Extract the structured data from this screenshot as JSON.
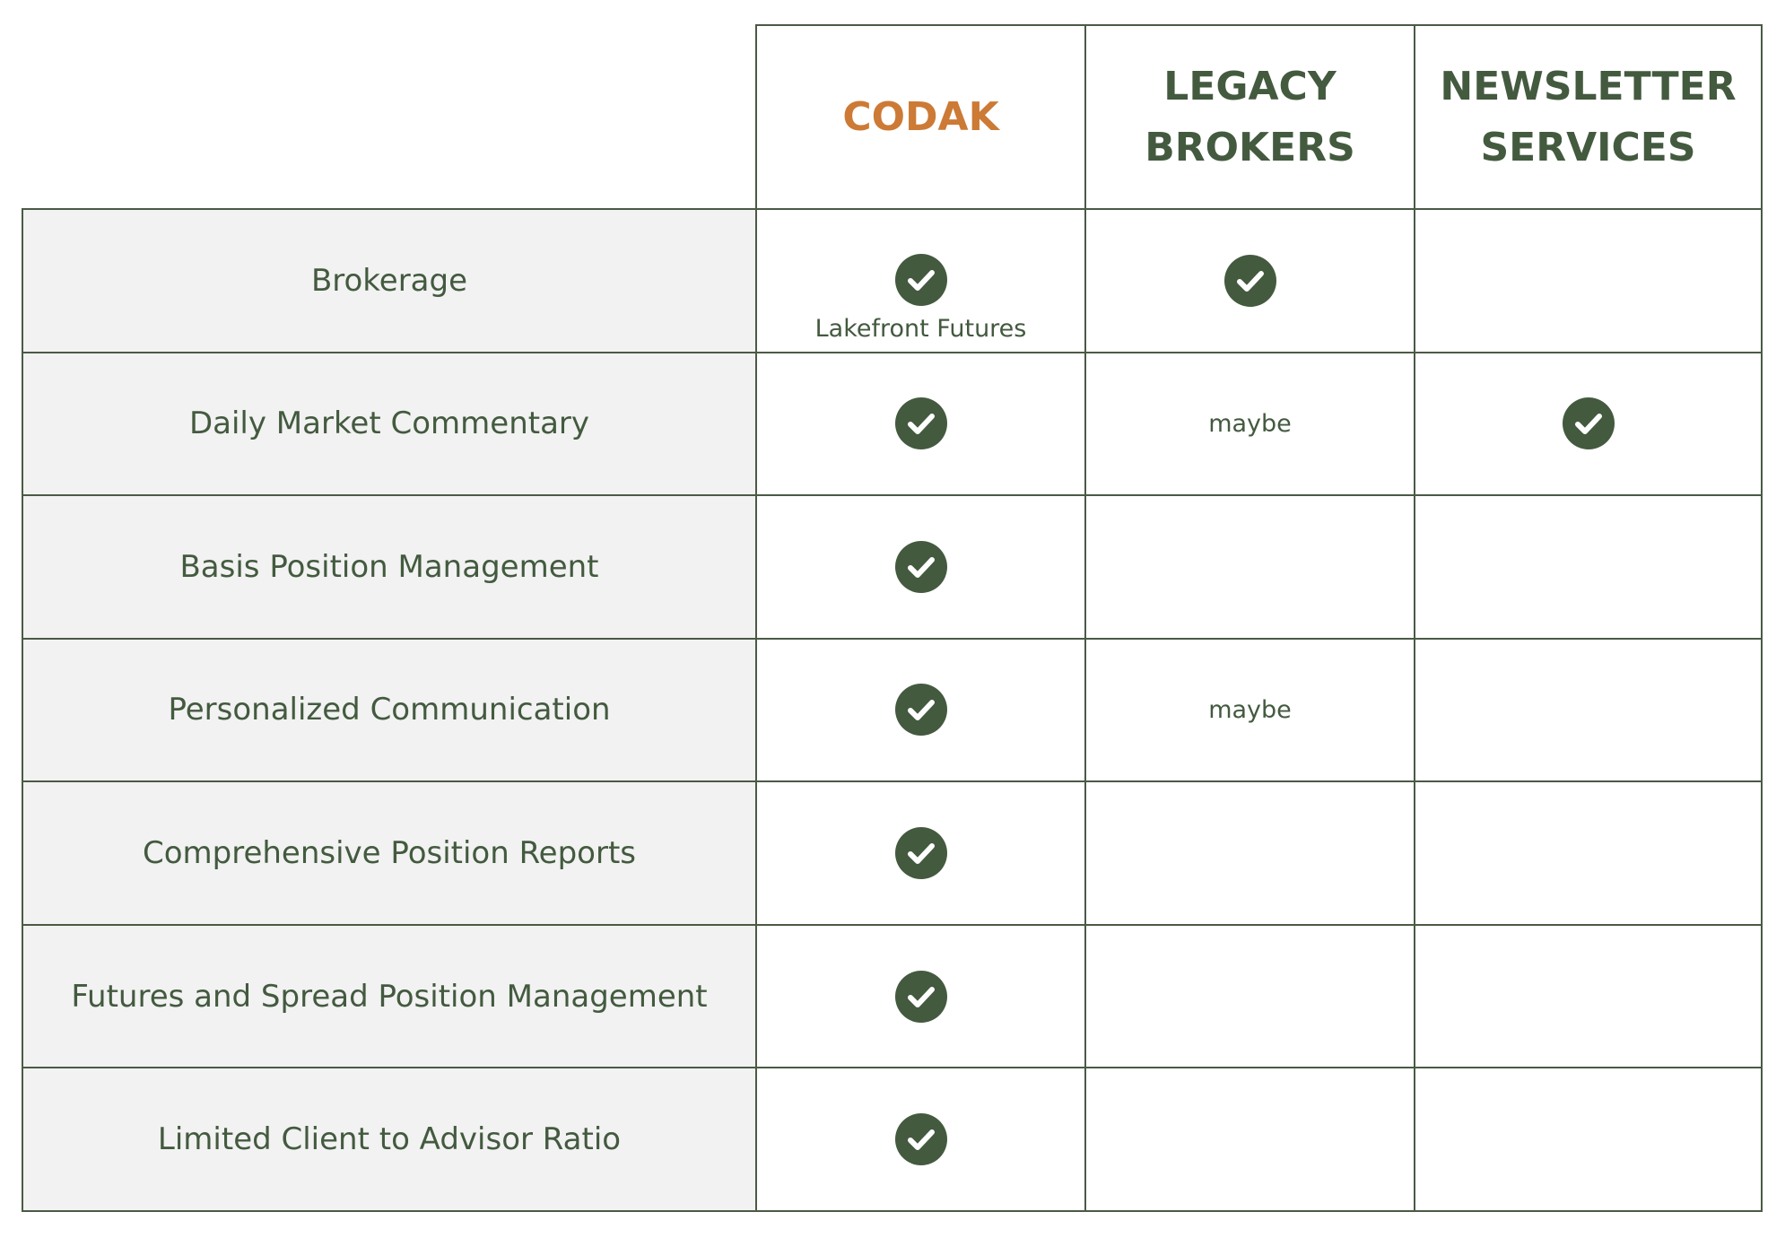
{
  "table": {
    "columns": [
      {
        "label": "CODAK",
        "color": "#cc7a35"
      },
      {
        "label": "LEGACY BROKERS",
        "color": "#435a3f"
      },
      {
        "label": "NEWSLETTER SERVICES",
        "color": "#435a3f"
      }
    ],
    "rows": [
      {
        "label": "Brokerage",
        "cells": [
          {
            "check": true,
            "text": "Lakefront Futures"
          },
          {
            "check": true
          },
          {}
        ]
      },
      {
        "label": "Daily Market Commentary",
        "cells": [
          {
            "check": true
          },
          {
            "text": "maybe"
          },
          {
            "check": true
          }
        ]
      },
      {
        "label": "Basis Position Management",
        "cells": [
          {
            "check": true
          },
          {},
          {}
        ]
      },
      {
        "label": "Personalized Communication",
        "cells": [
          {
            "check": true
          },
          {
            "text": "maybe"
          },
          {}
        ]
      },
      {
        "label": "Comprehensive Position Reports",
        "cells": [
          {
            "check": true
          },
          {},
          {}
        ]
      },
      {
        "label": "Futures and Spread Position Management",
        "cells": [
          {
            "check": true
          },
          {},
          {}
        ]
      },
      {
        "label": "Limited Client to Advisor Ratio",
        "cells": [
          {
            "check": true
          },
          {},
          {}
        ]
      }
    ]
  }
}
